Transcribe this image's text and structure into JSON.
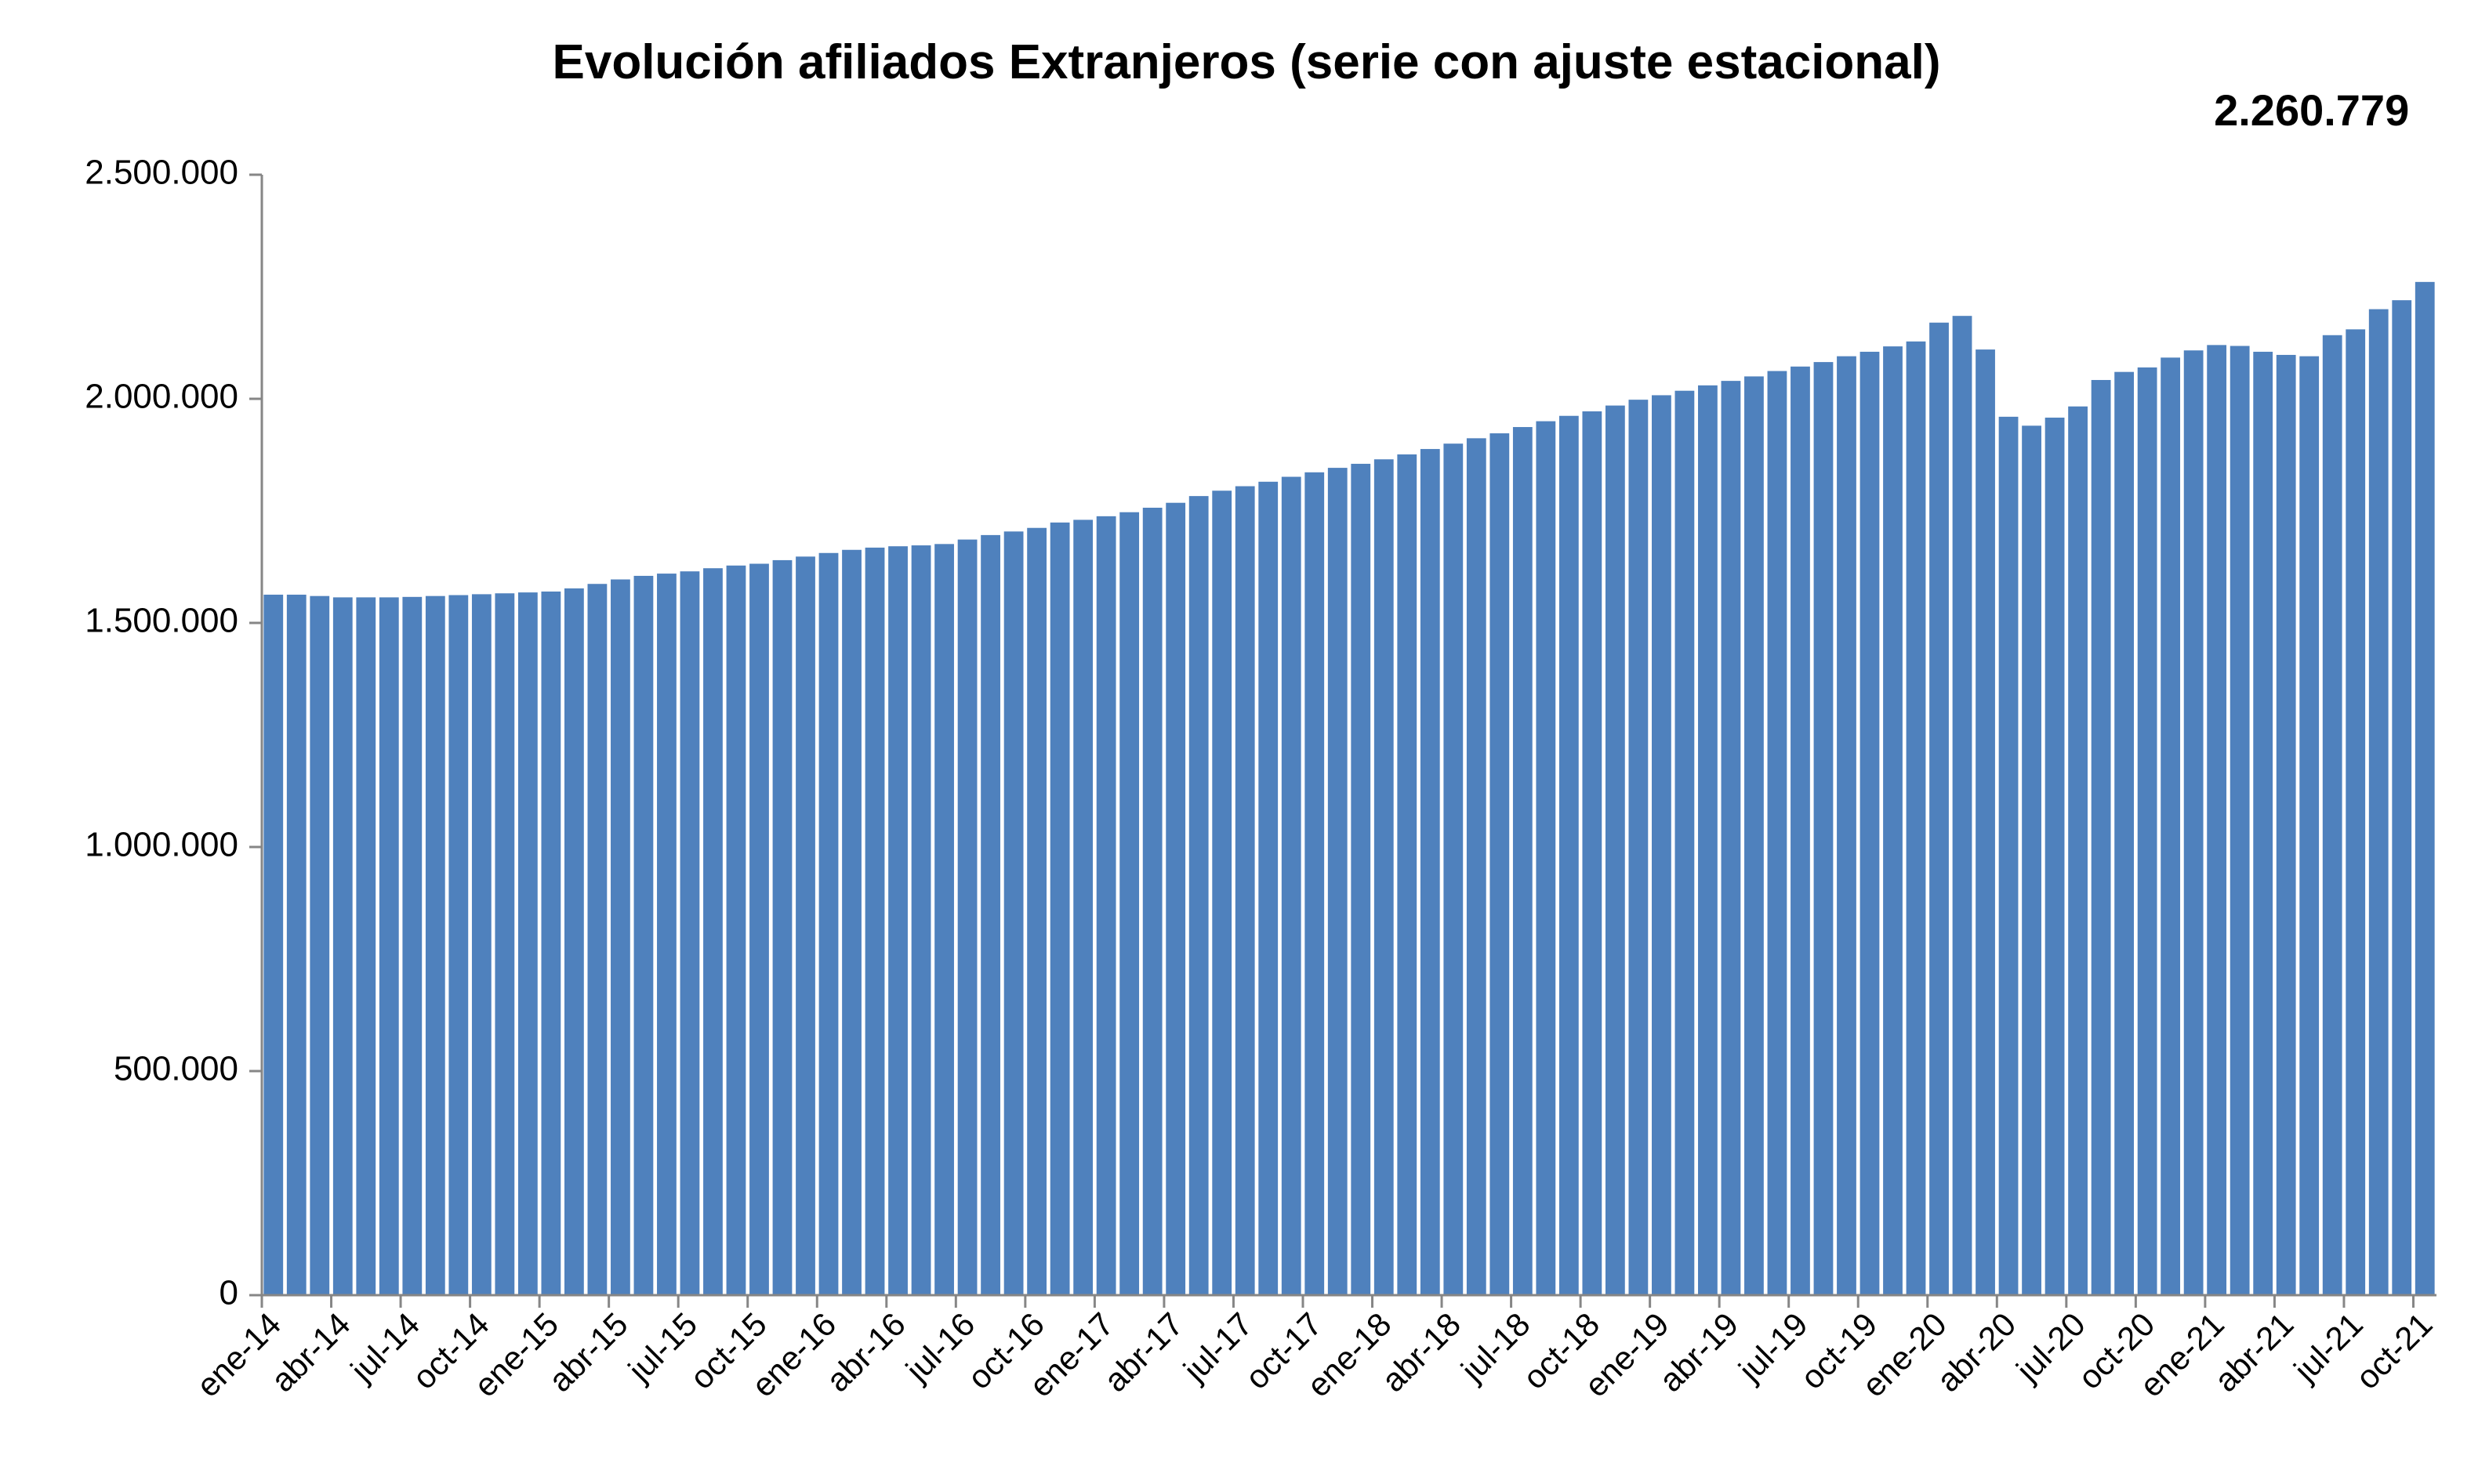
{
  "chart_data": {
    "type": "bar",
    "title": "Evolución afiliados Extranjeros (serie con ajuste estacional)",
    "categories": [
      "ene-14",
      null,
      null,
      "abr-14",
      null,
      null,
      "jul-14",
      null,
      null,
      "oct-14",
      null,
      null,
      "ene-15",
      null,
      null,
      "abr-15",
      null,
      null,
      "jul-15",
      null,
      null,
      "oct-15",
      null,
      null,
      "ene-16",
      null,
      null,
      "abr-16",
      null,
      null,
      "jul-16",
      null,
      null,
      "oct-16",
      null,
      null,
      "ene-17",
      null,
      null,
      "abr-17",
      null,
      null,
      "jul-17",
      null,
      null,
      "oct-17",
      null,
      null,
      "ene-18",
      null,
      null,
      "abr-18",
      null,
      null,
      "jul-18",
      null,
      null,
      "oct-18",
      null,
      null,
      "ene-19",
      null,
      null,
      "abr-19",
      null,
      null,
      "jul-19",
      null,
      null,
      "oct-19",
      null,
      null,
      "ene-20",
      null,
      null,
      "abr-20",
      null,
      null,
      "jul-20",
      null,
      null,
      "oct-20",
      null,
      null,
      "ene-21",
      null,
      null,
      "abr-21",
      null,
      null,
      "jul-21",
      null,
      null,
      "oct-21"
    ],
    "values": [
      1563000,
      1563000,
      1560000,
      1557000,
      1557000,
      1557000,
      1558000,
      1560000,
      1562000,
      1564000,
      1566000,
      1568000,
      1570000,
      1577000,
      1587000,
      1597000,
      1605000,
      1610000,
      1615000,
      1622000,
      1628000,
      1632000,
      1640000,
      1648000,
      1656000,
      1663000,
      1668000,
      1671000,
      1673000,
      1676000,
      1686000,
      1696000,
      1704000,
      1712000,
      1724000,
      1730000,
      1738000,
      1747000,
      1757000,
      1768000,
      1783000,
      1795000,
      1805000,
      1815000,
      1826000,
      1836000,
      1846000,
      1855000,
      1865000,
      1876000,
      1888000,
      1900000,
      1912000,
      1923000,
      1937000,
      1950000,
      1962000,
      1972000,
      1985000,
      1998000,
      2008000,
      2018000,
      2030000,
      2040000,
      2050000,
      2062000,
      2072000,
      2082000,
      2095000,
      2105000,
      2117000,
      2128000,
      2170000,
      2185000,
      2110000,
      1960000,
      1940000,
      1958000,
      1983000,
      2042000,
      2060000,
      2070000,
      2092000,
      2108000,
      2120000,
      2118000,
      2105000,
      2098000,
      2095000,
      2142000,
      2155000,
      2200000,
      2220000,
      2260779
    ],
    "value_labels": [
      null,
      null,
      null,
      null,
      null,
      null,
      null,
      null,
      null,
      null,
      null,
      null,
      null,
      null,
      null,
      null,
      null,
      null,
      null,
      null,
      null,
      null,
      null,
      null,
      null,
      null,
      null,
      null,
      null,
      null,
      null,
      null,
      null,
      null,
      null,
      null,
      null,
      null,
      null,
      null,
      null,
      null,
      null,
      null,
      null,
      null,
      null,
      null,
      null,
      null,
      null,
      null,
      null,
      null,
      null,
      null,
      null,
      null,
      null,
      null,
      null,
      null,
      null,
      null,
      null,
      null,
      null,
      null,
      null,
      null,
      null,
      null,
      null,
      null,
      null,
      null,
      null,
      null,
      null,
      null,
      null,
      null,
      null,
      null,
      null,
      null,
      null,
      null,
      null,
      null,
      null,
      null,
      null,
      "2.260.779"
    ],
    "color": "#4f81bd",
    "ylim": [
      0,
      2500000
    ],
    "yticks": [
      0,
      {
        "value": 500000,
        "label": "500.000"
      },
      {
        "value": 1000000,
        "label": "1.000.000"
      },
      {
        "value": 1500000,
        "label": "1.500.000"
      },
      {
        "value": 2000000,
        "label": "2.000.000"
      },
      {
        "value": 2500000,
        "label": "2.500.000"
      }
    ],
    "grid": false
  }
}
